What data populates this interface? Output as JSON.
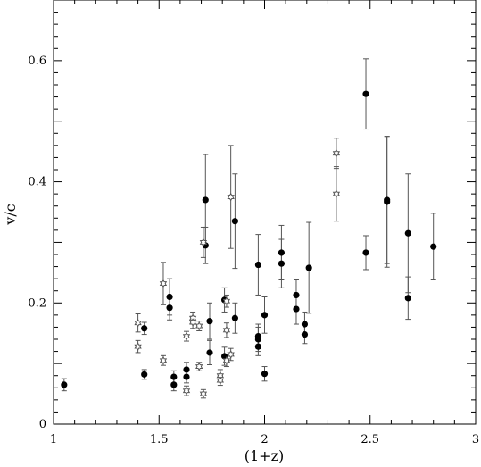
{
  "chart_data": {
    "type": "scatter",
    "xlabel": "(1+z)",
    "ylabel": "v/c",
    "xlim": [
      1,
      3
    ],
    "ylim": [
      0,
      0.7
    ],
    "x_ticks": [
      1,
      1.5,
      2,
      2.5,
      3
    ],
    "y_ticks": [
      0,
      0.2,
      0.4,
      0.6
    ],
    "x_tick_labels": [
      "1",
      "1.5",
      "2",
      "2.5",
      "3"
    ],
    "y_tick_labels": [
      "0",
      "0.2",
      "0.4",
      "0.6"
    ],
    "grid": false,
    "series": [
      {
        "marker": "filled-circle",
        "color": "#000000",
        "points": [
          {
            "x": 1.05,
            "y": 0.065,
            "err": 0.01
          },
          {
            "x": 1.43,
            "y": 0.158,
            "err": 0.01
          },
          {
            "x": 1.43,
            "y": 0.082,
            "err": 0.008
          },
          {
            "x": 1.55,
            "y": 0.21,
            "err": 0.03
          },
          {
            "x": 1.55,
            "y": 0.192,
            "err": 0.02
          },
          {
            "x": 1.57,
            "y": 0.078,
            "err": 0.01
          },
          {
            "x": 1.57,
            "y": 0.065,
            "err": 0.01
          },
          {
            "x": 1.63,
            "y": 0.09,
            "err": 0.012
          },
          {
            "x": 1.63,
            "y": 0.078,
            "err": 0.01
          },
          {
            "x": 1.72,
            "y": 0.37,
            "err": 0.075
          },
          {
            "x": 1.72,
            "y": 0.295,
            "err": 0.03
          },
          {
            "x": 1.74,
            "y": 0.17,
            "err": 0.03
          },
          {
            "x": 1.74,
            "y": 0.118,
            "err": 0.02
          },
          {
            "x": 1.81,
            "y": 0.205,
            "err": 0.02
          },
          {
            "x": 1.81,
            "y": 0.112,
            "err": 0.015
          },
          {
            "x": 1.86,
            "y": 0.335,
            "err": 0.078
          },
          {
            "x": 1.86,
            "y": 0.175,
            "err": 0.025
          },
          {
            "x": 1.97,
            "y": 0.263,
            "err": 0.05
          },
          {
            "x": 1.97,
            "y": 0.145,
            "err": 0.02
          },
          {
            "x": 1.97,
            "y": 0.14,
            "err": 0.02
          },
          {
            "x": 1.97,
            "y": 0.128,
            "err": 0.015
          },
          {
            "x": 2.0,
            "y": 0.18,
            "err": 0.03
          },
          {
            "x": 2.0,
            "y": 0.083,
            "err": 0.012
          },
          {
            "x": 2.08,
            "y": 0.283,
            "err": 0.045
          },
          {
            "x": 2.08,
            "y": 0.265,
            "err": 0.04
          },
          {
            "x": 2.15,
            "y": 0.213,
            "err": 0.025
          },
          {
            "x": 2.15,
            "y": 0.19,
            "err": 0.025
          },
          {
            "x": 2.19,
            "y": 0.165,
            "err": 0.02
          },
          {
            "x": 2.19,
            "y": 0.148,
            "err": 0.015
          },
          {
            "x": 2.21,
            "y": 0.258,
            "err": 0.075
          },
          {
            "x": 2.48,
            "y": 0.545,
            "err": 0.058
          },
          {
            "x": 2.48,
            "y": 0.283,
            "err": 0.028
          },
          {
            "x": 2.58,
            "y": 0.37,
            "err": 0.105
          },
          {
            "x": 2.58,
            "y": 0.367,
            "err": 0.108
          },
          {
            "x": 2.68,
            "y": 0.315,
            "err": 0.098
          },
          {
            "x": 2.68,
            "y": 0.208,
            "err": 0.035
          },
          {
            "x": 2.8,
            "y": 0.293,
            "err": 0.055
          }
        ]
      },
      {
        "marker": "open-star",
        "color": "#555555",
        "points": [
          {
            "x": 1.4,
            "y": 0.167,
            "err": 0.015
          },
          {
            "x": 1.4,
            "y": 0.128,
            "err": 0.01
          },
          {
            "x": 1.52,
            "y": 0.232,
            "err": 0.035
          },
          {
            "x": 1.52,
            "y": 0.105,
            "err": 0.008
          },
          {
            "x": 1.63,
            "y": 0.145,
            "err": 0.008
          },
          {
            "x": 1.63,
            "y": 0.055,
            "err": 0.008
          },
          {
            "x": 1.66,
            "y": 0.175,
            "err": 0.01
          },
          {
            "x": 1.66,
            "y": 0.168,
            "err": 0.01
          },
          {
            "x": 1.69,
            "y": 0.162,
            "err": 0.008
          },
          {
            "x": 1.69,
            "y": 0.095,
            "err": 0.007
          },
          {
            "x": 1.71,
            "y": 0.3,
            "err": 0.025
          },
          {
            "x": 1.71,
            "y": 0.05,
            "err": 0.007
          },
          {
            "x": 1.79,
            "y": 0.08,
            "err": 0.01
          },
          {
            "x": 1.79,
            "y": 0.072,
            "err": 0.008
          },
          {
            "x": 1.82,
            "y": 0.203,
            "err": 0.01
          },
          {
            "x": 1.82,
            "y": 0.155,
            "err": 0.012
          },
          {
            "x": 1.82,
            "y": 0.105,
            "err": 0.01
          },
          {
            "x": 1.84,
            "y": 0.375,
            "err": 0.085
          },
          {
            "x": 1.84,
            "y": 0.115,
            "err": 0.01
          },
          {
            "x": 2.34,
            "y": 0.447,
            "err": 0.025
          },
          {
            "x": 2.34,
            "y": 0.38,
            "err": 0.045
          }
        ]
      }
    ]
  }
}
